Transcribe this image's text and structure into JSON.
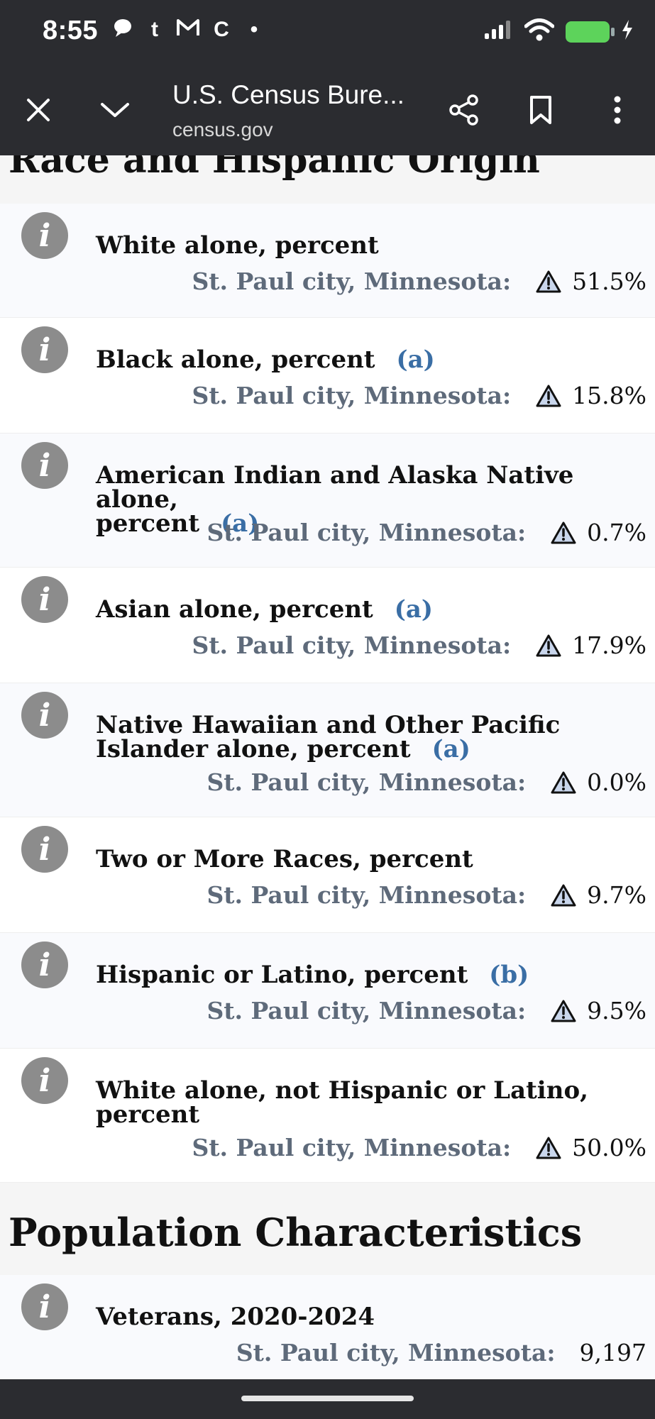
{
  "status_bar": {
    "time": "8:55",
    "notif_t": "t",
    "notif_c": "C",
    "notif_dot": "•"
  },
  "browser": {
    "title": "U.S. Census Bure...",
    "url": "census.gov"
  },
  "sections": {
    "race_heading": "Race and Hispanic Origin",
    "population_heading": "Population Characteristics"
  },
  "rows": [
    {
      "label": "White alone, percent",
      "note": "",
      "place": "St. Paul city, Minnesota:",
      "value": "51.5%"
    },
    {
      "label": "Black alone, percent",
      "note": "(a)",
      "place": "St. Paul city, Minnesota:",
      "value": "15.8%"
    },
    {
      "label": "American Indian and Alaska Native alone,",
      "label2": "percent",
      "note": "(a)",
      "place": "St. Paul city, Minnesota:",
      "value": "0.7%"
    },
    {
      "label": "Asian alone, percent",
      "note": "(a)",
      "place": "St. Paul city, Minnesota:",
      "value": "17.9%"
    },
    {
      "label": "Native Hawaiian and Other Pacific",
      "label2": "Islander alone, percent",
      "note": "(a)",
      "place": "St. Paul city, Minnesota:",
      "value": "0.0%"
    },
    {
      "label": "Two or More Races, percent",
      "note": "",
      "place": "St. Paul city, Minnesota:",
      "value": "9.7%"
    },
    {
      "label": "Hispanic or Latino, percent",
      "note": "(b)",
      "place": "St. Paul city, Minnesota:",
      "value": "9.5%"
    },
    {
      "label": "White alone, not Hispanic or Latino,",
      "label2": "percent",
      "note": "",
      "place": "St. Paul city, Minnesota:",
      "value": "50.0%"
    }
  ],
  "veterans": {
    "label": "Veterans, 2020-2024",
    "place": "St. Paul city, Minnesota:",
    "value": "9,197"
  },
  "info_glyph": "i"
}
